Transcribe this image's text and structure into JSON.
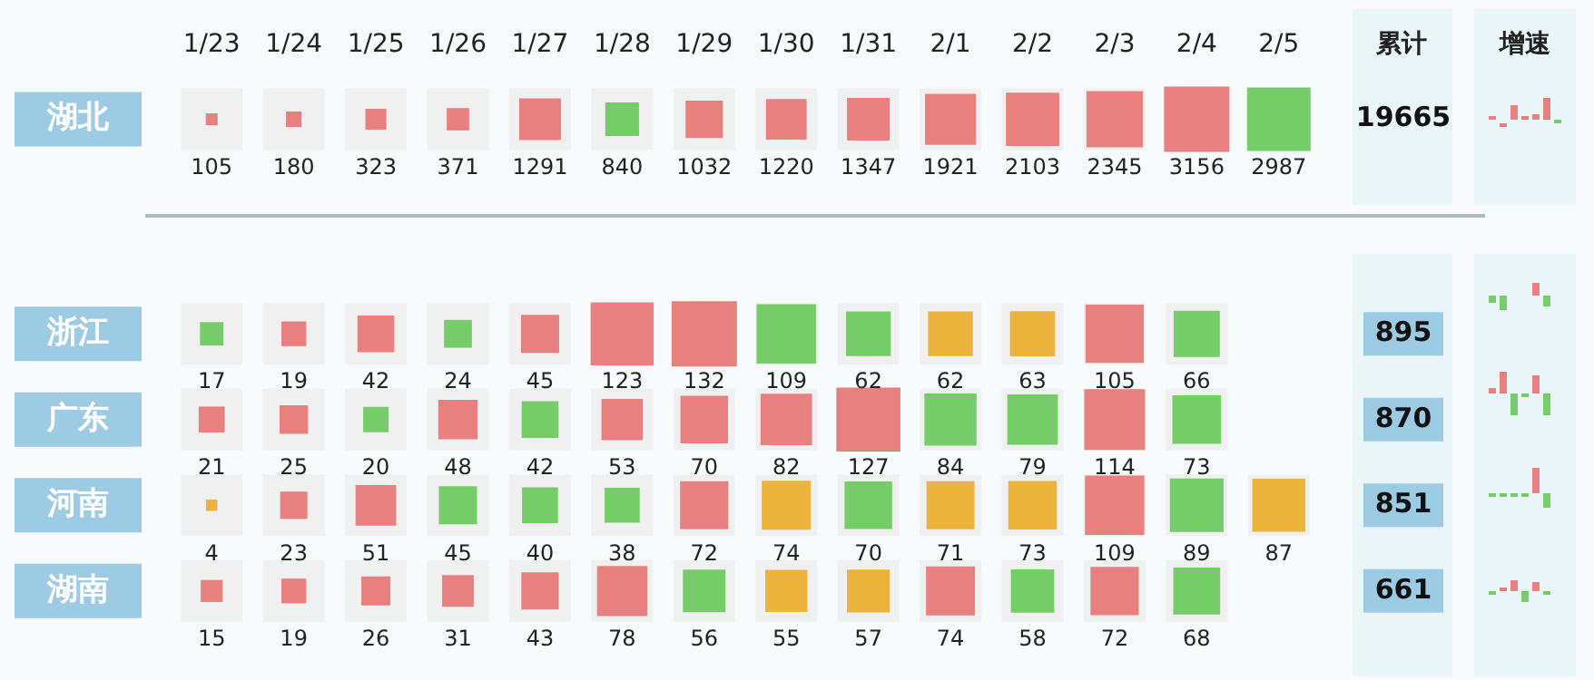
{
  "chart_data": [
    {
      "type": "heatmap",
      "categories": [
        "1/23",
        "1/24",
        "1/25",
        "1/26",
        "1/27",
        "1/28",
        "1/29",
        "1/30",
        "1/31",
        "2/1",
        "2/2",
        "2/3",
        "2/4",
        "2/5"
      ],
      "y_categories": [
        "湖北"
      ],
      "y2_categories": [
        "19665"
      ],
      "cells": [
        [
          105,
          180,
          323,
          371,
          1291,
          840,
          1032,
          1220,
          1347,
          1921,
          2103,
          2345,
          3156,
          2987
        ]
      ],
      "colors": [
        [
          "#e88080",
          "#e88080",
          "#e88080",
          "#e88080",
          "#e88080",
          "#77cc6a",
          "#e88080",
          "#e88080",
          "#e88080",
          "#e88080",
          "#e88080",
          "#e88080",
          "#e88080",
          "#77cc6a"
        ]
      ],
      "annotations": [
        "累计",
        "增速"
      ],
      "data_labels": true
    },
    {
      "type": "heatmap",
      "categories": [
        null,
        null,
        null,
        null,
        null,
        null,
        null,
        null,
        null,
        null,
        null,
        null,
        null,
        null
      ],
      "y_categories": [
        "浙江",
        "广东",
        "河南",
        "湖南"
      ],
      "y2_categories": [
        "895",
        "870",
        "851",
        "661"
      ],
      "cells": [
        [
          17,
          19,
          42,
          24,
          45,
          123,
          132,
          109,
          62,
          62,
          63,
          105,
          66,
          null
        ],
        [
          21,
          25,
          20,
          48,
          42,
          53,
          70,
          82,
          127,
          84,
          79,
          114,
          73,
          null
        ],
        [
          4,
          23,
          51,
          45,
          40,
          38,
          72,
          74,
          70,
          71,
          73,
          109,
          89,
          87
        ],
        [
          15,
          19,
          26,
          31,
          43,
          78,
          56,
          55,
          57,
          74,
          58,
          72,
          68,
          null
        ]
      ],
      "colors": [
        [
          "#77cc6a",
          "#e88080",
          "#e88080",
          "#77cc6a",
          "#e88080",
          "#e88080",
          "#e88080",
          "#77cc6a",
          "#77cc6a",
          "#ecb43c",
          "#ecb43c",
          "#e88080",
          "#77cc6a",
          null
        ],
        [
          "#e88080",
          "#e88080",
          "#77cc6a",
          "#e88080",
          "#77cc6a",
          "#e88080",
          "#e88080",
          "#e88080",
          "#e88080",
          "#77cc6a",
          "#77cc6a",
          "#e88080",
          "#77cc6a",
          null
        ],
        [
          "#ecb43c",
          "#e88080",
          "#e88080",
          "#77cc6a",
          "#77cc6a",
          "#77cc6a",
          "#e88080",
          "#ecb43c",
          "#77cc6a",
          "#ecb43c",
          "#ecb43c",
          "#e88080",
          "#77cc6a",
          "#ecb43c"
        ],
        [
          "#e88080",
          "#e88080",
          "#e88080",
          "#e88080",
          "#e88080",
          "#e88080",
          "#77cc6a",
          "#ecb43c",
          "#ecb43c",
          "#e88080",
          "#77cc6a",
          "#e88080",
          "#77cc6a",
          null
        ]
      ],
      "tick_labels": "y",
      "data_labels": true
    }
  ]
}
